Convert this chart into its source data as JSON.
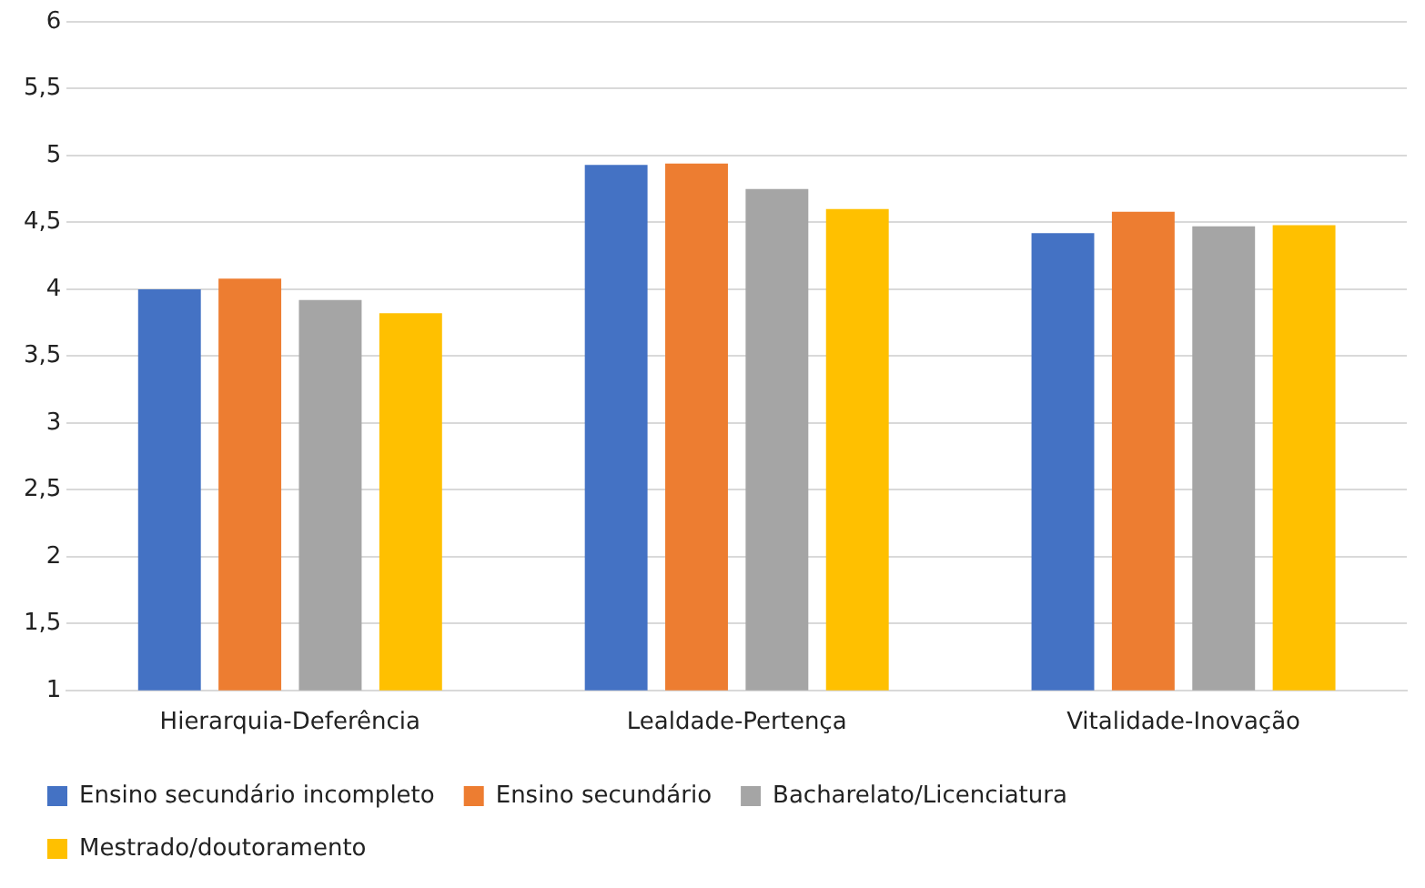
{
  "chart_data": {
    "type": "bar",
    "categories": [
      "Hierarquia-Deferência",
      "Lealdade-Pertença",
      "Vitalidade-Inovação"
    ],
    "series": [
      {
        "name": "Ensino secundário incompleto",
        "color": "#4472c4",
        "values": [
          4.0,
          4.93,
          4.42
        ]
      },
      {
        "name": "Ensino secundário",
        "color": "#ed7d31",
        "values": [
          4.08,
          4.94,
          4.58
        ]
      },
      {
        "name": "Bacharelato/Licenciatura",
        "color": "#a5a5a5",
        "values": [
          3.92,
          4.75,
          4.47
        ]
      },
      {
        "name": "Mestrado/doutoramento",
        "color": "#ffc000",
        "values": [
          3.82,
          4.6,
          4.48
        ]
      }
    ],
    "ylim": [
      1,
      6
    ],
    "yticks": [
      1,
      {
        "value": 1.5,
        "label": "1,5"
      },
      2,
      {
        "value": 2.5,
        "label": "2,5"
      },
      3,
      {
        "value": 3.5,
        "label": "3,5"
      },
      4,
      {
        "value": 4.5,
        "label": "4,5"
      },
      5,
      {
        "value": 5.5,
        "label": "5,5"
      },
      6
    ],
    "grid": "y",
    "legend": "bottom"
  }
}
